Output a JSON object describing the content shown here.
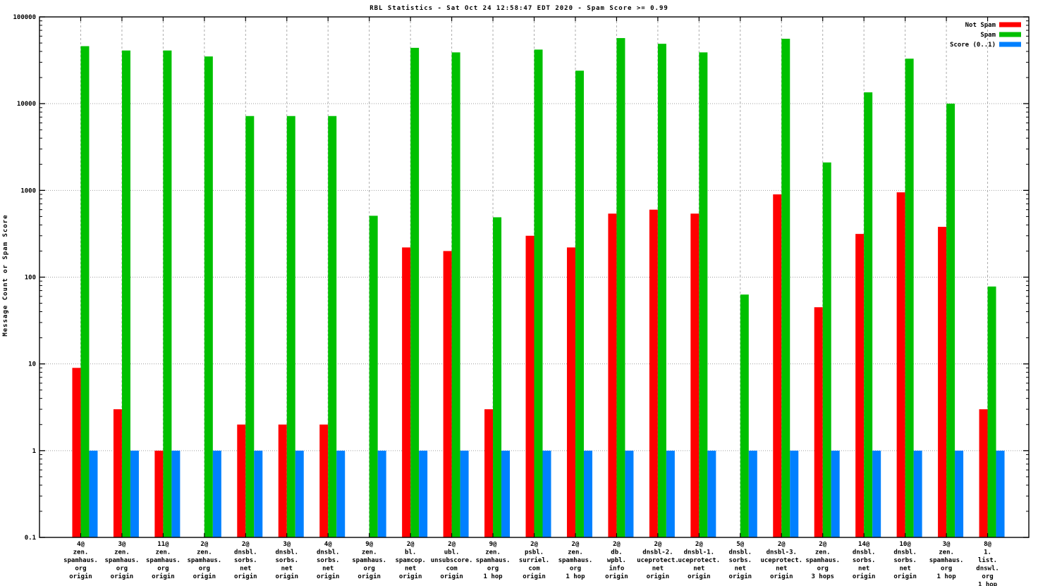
{
  "title": "RBL Statistics - Sat Oct 24 12:58:47 EDT 2020 - Spam Score >= 0.99",
  "ylabel": "Message Count or Spam Score",
  "chart_data": {
    "type": "bar",
    "scale": "log",
    "ylim": [
      0.1,
      100000
    ],
    "y_ticks": [
      "100000",
      "10000",
      "1000",
      "100",
      "10",
      "1",
      "0.1"
    ],
    "grid": "on",
    "legend_position": "top-right-inside",
    "categories": [
      [
        "4@",
        "zen.",
        "spamhaus.",
        "org",
        "origin"
      ],
      [
        "3@",
        "zen.",
        "spamhaus.",
        "org",
        "origin"
      ],
      [
        "11@",
        "zen.",
        "spamhaus.",
        "org",
        "origin"
      ],
      [
        "2@",
        "zen.",
        "spamhaus.",
        "org",
        "origin"
      ],
      [
        "2@",
        "dnsbl.",
        "sorbs.",
        "net",
        "origin"
      ],
      [
        "3@",
        "dnsbl.",
        "sorbs.",
        "net",
        "origin"
      ],
      [
        "4@",
        "dnsbl.",
        "sorbs.",
        "net",
        "origin"
      ],
      [
        "9@",
        "zen.",
        "spamhaus.",
        "org",
        "origin"
      ],
      [
        "2@",
        "bl.",
        "spamcop.",
        "net",
        "origin"
      ],
      [
        "2@",
        "ubl.",
        "unsubscore.",
        "com",
        "origin"
      ],
      [
        "9@",
        "zen.",
        "spamhaus.",
        "org",
        "1 hop"
      ],
      [
        "2@",
        "psbl.",
        "surriel.",
        "com",
        "origin"
      ],
      [
        "2@",
        "zen.",
        "spamhaus.",
        "org",
        "1 hop"
      ],
      [
        "2@",
        "db.",
        "wpbl.",
        "info",
        "origin"
      ],
      [
        "2@",
        "dnsbl-2.",
        "uceprotect.",
        "net",
        "origin"
      ],
      [
        "2@",
        "dnsbl-1.",
        "uceprotect.",
        "net",
        "origin"
      ],
      [
        "5@",
        "dnsbl.",
        "sorbs.",
        "net",
        "origin"
      ],
      [
        "2@",
        "dnsbl-3.",
        "uceprotect.",
        "net",
        "origin"
      ],
      [
        "2@",
        "zen.",
        "spamhaus.",
        "org",
        "3 hops"
      ],
      [
        "14@",
        "dnsbl.",
        "sorbs.",
        "net",
        "origin"
      ],
      [
        "10@",
        "dnsbl.",
        "sorbs.",
        "net",
        "origin"
      ],
      [
        "3@",
        "zen.",
        "spamhaus.",
        "org",
        "1 hop"
      ],
      [
        "8@",
        "1.",
        "list.",
        "dnswl.",
        "org",
        "1 hop"
      ]
    ],
    "series": [
      {
        "name": "Not Spam",
        "color": "#ff0000",
        "values": [
          9,
          3,
          1,
          0,
          2,
          2,
          2,
          0,
          220,
          200,
          3,
          300,
          220,
          540,
          600,
          540,
          0,
          900,
          45,
          315,
          950,
          380,
          3
        ]
      },
      {
        "name": "Spam",
        "color": "#00c000",
        "values": [
          46000,
          41000,
          41000,
          35000,
          7200,
          7200,
          7200,
          510,
          44000,
          39000,
          490,
          42000,
          24000,
          57000,
          49000,
          39000,
          63,
          56000,
          2100,
          13500,
          33000,
          10000,
          78
        ]
      },
      {
        "name": "Score (0..1)",
        "color": "#0080ff",
        "values": [
          1,
          1,
          1,
          1,
          1,
          1,
          1,
          1,
          1,
          1,
          1,
          1,
          1,
          1,
          1,
          1,
          1,
          1,
          1,
          1,
          1,
          1,
          1
        ]
      }
    ]
  },
  "style_colors": {
    "grid": "#9e9e9e",
    "border": "#000000",
    "background": "#ffffff"
  }
}
